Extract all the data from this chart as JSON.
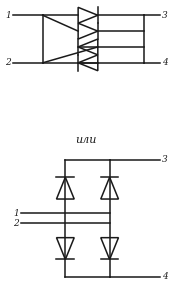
{
  "fig_width": 1.73,
  "fig_height": 2.98,
  "dpi": 100,
  "line_color": "#1a1a1a",
  "lw": 1.1,
  "ili_text": "или"
}
